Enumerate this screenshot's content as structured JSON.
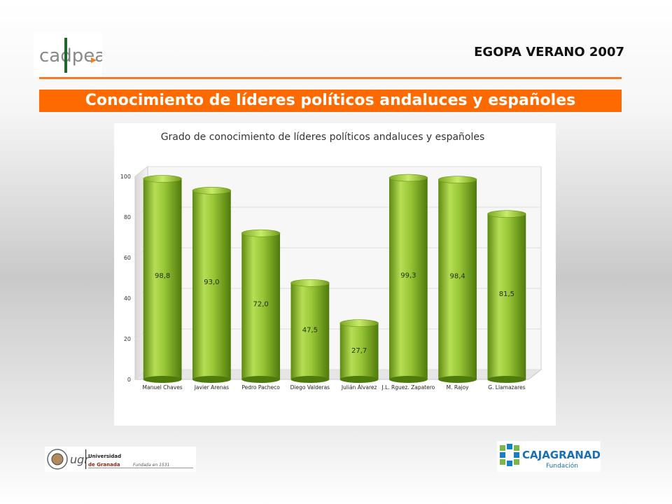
{
  "header": {
    "title": "EGOPA VERANO 2007",
    "logo_text": "cadpea"
  },
  "banner": {
    "title": "Conocimiento de líderes políticos andaluces y españoles"
  },
  "footer": {
    "university_line1": "Universidad",
    "university_line2": "de Granada",
    "university_founded": "Fundada en 1531",
    "university_abbr": "ugr",
    "caja_brand": "CAJAGRANADA",
    "caja_sub": "Fundación"
  },
  "colors": {
    "accent": "#ff6a00",
    "bar": "#8dc02a"
  },
  "chart_data": {
    "type": "bar",
    "title": "Grado de conocimiento de líderes políticos andaluces y españoles",
    "categories": [
      "Manuel Chaves",
      "Javier Arenas",
      "Pedro Pacheco",
      "Diego Valderas",
      "Julián Álvarez",
      "J.L. Rguez. Zapatero",
      "M. Rajoy",
      "G. Llamazares"
    ],
    "values": [
      98.8,
      93.0,
      72.0,
      47.5,
      27.7,
      99.3,
      98.4,
      81.5
    ],
    "value_labels": [
      "98,8",
      "93,0",
      "72,0",
      "47,5",
      "27,7",
      "99,3",
      "98,4",
      "81,5"
    ],
    "yticks": [
      "0",
      "20",
      "40",
      "60",
      "80",
      "100"
    ],
    "ylim": [
      0,
      100
    ],
    "grid": true,
    "legend": "none"
  }
}
